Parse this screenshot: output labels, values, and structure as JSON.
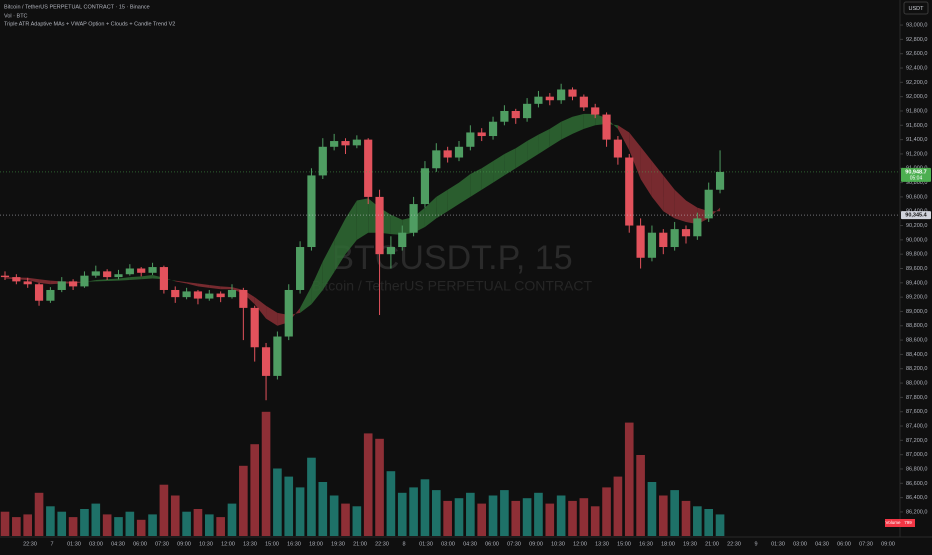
{
  "chart_data": {
    "type": "candlestick",
    "title": "Bitcoin / TetherUS PERPETUAL CONTRACT · 15 · Binance",
    "volume_label_top": "Vol · BTC",
    "indicator": "Triple ATR Adaptive MAs + VWAP Option + Clouds + Candle Trend V2",
    "watermark": "BTCUSDT.P, 15",
    "watermark_subtitle": "Bitcoin / TetherUS PERPETUAL CONTRACT",
    "currency": "USDT",
    "up_color": "#4f9d62",
    "down_color": "#e2525c",
    "vol_up_color": "#1e7168",
    "vol_down_color": "#8e2f36",
    "cloud_up_color": "#2f6b34",
    "cloud_down_color": "#8a2f35",
    "ylim": [
      85850,
      93350
    ],
    "yticks": [
      {
        "value": 86200,
        "label": "86,200,0"
      },
      {
        "value": 86400,
        "label": "86,400,0"
      },
      {
        "value": 86600,
        "label": "86,600,0"
      },
      {
        "value": 86800,
        "label": "86,800,0"
      },
      {
        "value": 87000,
        "label": "87,000,0"
      },
      {
        "value": 87200,
        "label": "87,200,0"
      },
      {
        "value": 87400,
        "label": "87,400,0"
      },
      {
        "value": 87600,
        "label": "87,600,0"
      },
      {
        "value": 87800,
        "label": "87,800,0"
      },
      {
        "value": 88000,
        "label": "88,000,0"
      },
      {
        "value": 88200,
        "label": "88,200,0"
      },
      {
        "value": 88400,
        "label": "88,400,0"
      },
      {
        "value": 88600,
        "label": "88,600,0"
      },
      {
        "value": 88800,
        "label": "88,800,0"
      },
      {
        "value": 89000,
        "label": "89,000,0"
      },
      {
        "value": 89200,
        "label": "89,200,0"
      },
      {
        "value": 89400,
        "label": "89,400,0"
      },
      {
        "value": 89600,
        "label": "89,600,0"
      },
      {
        "value": 89800,
        "label": "89,800,0"
      },
      {
        "value": 90000,
        "label": "90,000,0"
      },
      {
        "value": 90200,
        "label": "90,200,0"
      },
      {
        "value": 90400,
        "label": "90,400,0"
      },
      {
        "value": 90600,
        "label": "90,600,0"
      },
      {
        "value": 90800,
        "label": "90,800,0"
      },
      {
        "value": 91000,
        "label": "91,000,0"
      },
      {
        "value": 91200,
        "label": "91,200,0"
      },
      {
        "value": 91400,
        "label": "91,400,0"
      },
      {
        "value": 91600,
        "label": "91,600,0"
      },
      {
        "value": 91800,
        "label": "91,800,0"
      },
      {
        "value": 92000,
        "label": "92,000,0"
      },
      {
        "value": 92200,
        "label": "92,200,0"
      },
      {
        "value": 92400,
        "label": "92,400,0"
      },
      {
        "value": 92600,
        "label": "92,600,0"
      },
      {
        "value": 92800,
        "label": "92,800,0"
      },
      {
        "value": 93000,
        "label": "93,000,0"
      }
    ],
    "xticks": [
      "22:30",
      "7",
      "01:30",
      "03:00",
      "04:30",
      "06:00",
      "07:30",
      "09:00",
      "10:30",
      "12:00",
      "13:30",
      "15:00",
      "16:30",
      "18:00",
      "19:30",
      "21:00",
      "22:30",
      "8",
      "01:30",
      "03:00",
      "04:30",
      "06:00",
      "07:30",
      "09:00",
      "10:30",
      "12:00",
      "13:30",
      "15:00",
      "16:30",
      "18:00",
      "19:30",
      "21:00",
      "22:30",
      "9",
      "01:30",
      "03:00",
      "04:30",
      "06:00",
      "07:30",
      "09:00"
    ],
    "candles": [
      [
        89500,
        89560,
        89440,
        89480
      ],
      [
        89480,
        89520,
        89380,
        89420
      ],
      [
        89420,
        89470,
        89330,
        89380
      ],
      [
        89380,
        89400,
        89080,
        89150
      ],
      [
        89150,
        89340,
        89120,
        89300
      ],
      [
        89300,
        89480,
        89270,
        89420
      ],
      [
        89420,
        89450,
        89300,
        89350
      ],
      [
        89350,
        89560,
        89330,
        89500
      ],
      [
        89500,
        89640,
        89470,
        89560
      ],
      [
        89560,
        89590,
        89440,
        89480
      ],
      [
        89480,
        89580,
        89450,
        89520
      ],
      [
        89520,
        89660,
        89500,
        89600
      ],
      [
        89600,
        89620,
        89490,
        89540
      ],
      [
        89540,
        89680,
        89510,
        89620
      ],
      [
        89620,
        89640,
        89250,
        89300
      ],
      [
        89300,
        89350,
        89120,
        89200
      ],
      [
        89200,
        89330,
        89170,
        89280
      ],
      [
        89280,
        89300,
        89100,
        89180
      ],
      [
        89180,
        89300,
        89150,
        89250
      ],
      [
        89250,
        89280,
        89130,
        89200
      ],
      [
        89200,
        89380,
        89180,
        89300
      ],
      [
        89300,
        89330,
        88600,
        89050
      ],
      [
        89050,
        89080,
        88300,
        88500
      ],
      [
        88500,
        88560,
        87760,
        88100
      ],
      [
        88100,
        88720,
        88050,
        88650
      ],
      [
        88650,
        89380,
        88600,
        89300
      ],
      [
        89300,
        89980,
        89250,
        89900
      ],
      [
        89900,
        91000,
        89850,
        90900
      ],
      [
        90900,
        91420,
        90850,
        91300
      ],
      [
        91300,
        91480,
        91250,
        91380
      ],
      [
        91380,
        91420,
        91200,
        91320
      ],
      [
        91320,
        91460,
        91280,
        91400
      ],
      [
        91400,
        91420,
        90500,
        90600
      ],
      [
        90600,
        90700,
        88950,
        89800
      ],
      [
        89800,
        90050,
        89600,
        89900
      ],
      [
        89900,
        90200,
        89850,
        90100
      ],
      [
        90100,
        90600,
        90050,
        90500
      ],
      [
        90500,
        91100,
        90450,
        91000
      ],
      [
        91000,
        91350,
        90950,
        91250
      ],
      [
        91250,
        91300,
        91080,
        91150
      ],
      [
        91150,
        91380,
        91100,
        91300
      ],
      [
        91300,
        91600,
        91250,
        91500
      ],
      [
        91500,
        91560,
        91380,
        91450
      ],
      [
        91450,
        91720,
        91400,
        91650
      ],
      [
        91650,
        91880,
        91600,
        91800
      ],
      [
        91800,
        91830,
        91620,
        91700
      ],
      [
        91700,
        91980,
        91650,
        91900
      ],
      [
        91900,
        92080,
        91850,
        92000
      ],
      [
        92000,
        92050,
        91880,
        91950
      ],
      [
        91950,
        92180,
        91900,
        92100
      ],
      [
        92100,
        92130,
        91950,
        92000
      ],
      [
        92000,
        92030,
        91800,
        91850
      ],
      [
        91850,
        91900,
        91700,
        91750
      ],
      [
        91750,
        91780,
        91300,
        91400
      ],
      [
        91400,
        91450,
        91050,
        91150
      ],
      [
        91150,
        91200,
        90100,
        90200
      ],
      [
        90200,
        90300,
        89600,
        89750
      ],
      [
        89750,
        90200,
        89700,
        90100
      ],
      [
        90100,
        90150,
        89800,
        89900
      ],
      [
        89900,
        90250,
        89850,
        90150
      ],
      [
        90150,
        90200,
        89950,
        90050
      ],
      [
        90050,
        90380,
        90000,
        90300
      ],
      [
        90300,
        90800,
        90250,
        90700
      ],
      [
        90700,
        91250,
        90650,
        90948.7
      ]
    ],
    "volume": [
      900,
      700,
      800,
      1600,
      1100,
      900,
      700,
      1000,
      1200,
      800,
      700,
      900,
      600,
      800,
      1900,
      1500,
      900,
      1000,
      800,
      700,
      1200,
      2600,
      3400,
      4600,
      2500,
      2200,
      1800,
      2900,
      2000,
      1500,
      1200,
      1100,
      3800,
      3600,
      2400,
      1600,
      1800,
      2100,
      1700,
      1300,
      1400,
      1600,
      1200,
      1500,
      1700,
      1300,
      1400,
      1600,
      1200,
      1500,
      1300,
      1400,
      1100,
      1800,
      2200,
      4200,
      3000,
      2000,
      1500,
      1700,
      1300,
      1100,
      1000,
      799
    ],
    "ma_fast": [
      89460,
      89450,
      89440,
      89400,
      89380,
      89390,
      89390,
      89410,
      89440,
      89450,
      89460,
      89480,
      89490,
      89510,
      89470,
      89420,
      89390,
      89350,
      89330,
      89310,
      89310,
      89250,
      89100,
      88900,
      88800,
      88850,
      89050,
      89350,
      89700,
      90000,
      90300,
      90550,
      90580,
      90450,
      90350,
      90280,
      90320,
      90450,
      90600,
      90700,
      90800,
      90920,
      91000,
      91100,
      91200,
      91280,
      91380,
      91470,
      91550,
      91650,
      91720,
      91760,
      91760,
      91700,
      91550,
      91250,
      90850,
      90600,
      90400,
      90300,
      90250,
      90220,
      90300,
      90450
    ],
    "ma_slow": [
      89480,
      89475,
      89470,
      89450,
      89430,
      89420,
      89415,
      89415,
      89420,
      89425,
      89430,
      89440,
      89450,
      89460,
      89450,
      89430,
      89410,
      89390,
      89370,
      89350,
      89340,
      89300,
      89200,
      89080,
      88980,
      88950,
      88980,
      89100,
      89300,
      89550,
      89800,
      90000,
      90100,
      90100,
      90080,
      90070,
      90100,
      90180,
      90300,
      90400,
      90500,
      90600,
      90700,
      90800,
      90900,
      91000,
      91100,
      91200,
      91300,
      91400,
      91480,
      91550,
      91600,
      91620,
      91600,
      91500,
      91300,
      91100,
      90900,
      90700,
      90550,
      90450,
      90400,
      90400
    ],
    "price_tags": [
      {
        "value": 90948.7,
        "label": "90,948.7",
        "countdown": "05:04",
        "color": "#4caf50"
      },
      {
        "value": 90345.4,
        "label": "90,345.4",
        "color": "#d1d4dc"
      }
    ],
    "volume_tag": {
      "name": "Volume",
      "value": 799,
      "color": "#f23645"
    }
  }
}
